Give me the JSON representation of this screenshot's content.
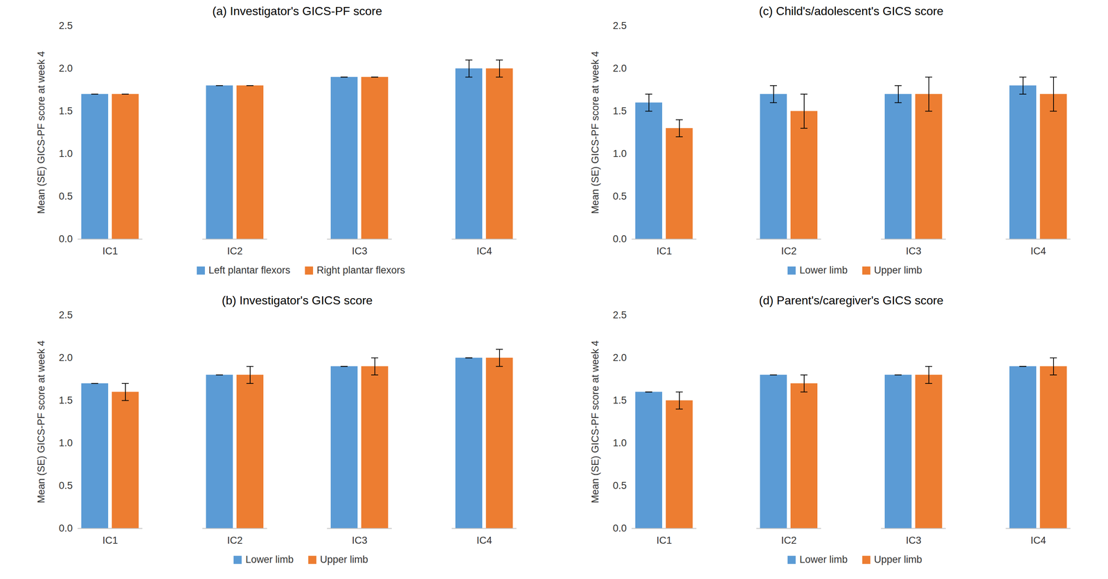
{
  "chart_data": [
    {
      "type": "bar",
      "title": "(a) Investigator's GICS-PF score",
      "ylabel": "Mean (SE) GICS-PF score at week 4",
      "categories": [
        "IC1",
        "IC2",
        "IC3",
        "IC4"
      ],
      "series": [
        {
          "name": "Left plantar flexors",
          "color": "#5b9bd5",
          "values": [
            1.7,
            1.8,
            1.9,
            2.0
          ],
          "errors": [
            0,
            0,
            0,
            0.1
          ]
        },
        {
          "name": "Right plantar flexors",
          "color": "#ed7d31",
          "values": [
            1.7,
            1.8,
            1.9,
            2.0
          ],
          "errors": [
            0,
            0,
            0,
            0.1
          ]
        }
      ],
      "ylim": [
        0,
        2.5
      ],
      "yticks": [
        0,
        0.5,
        1,
        1.5,
        2,
        2.5
      ],
      "legend": "bottom"
    },
    {
      "type": "bar",
      "title": "(b) Investigator's GICS score",
      "ylabel": "Mean (SE) GICS-PF score at week 4",
      "categories": [
        "IC1",
        "IC2",
        "IC3",
        "IC4"
      ],
      "series": [
        {
          "name": "Lower limb",
          "color": "#5b9bd5",
          "values": [
            1.7,
            1.8,
            1.9,
            2.0
          ],
          "errors": [
            0,
            0,
            0,
            0
          ]
        },
        {
          "name": "Upper limb",
          "color": "#ed7d31",
          "values": [
            1.6,
            1.8,
            1.9,
            2.0
          ],
          "errors": [
            0.1,
            0.1,
            0.1,
            0.1
          ]
        }
      ],
      "ylim": [
        0,
        2.5
      ],
      "yticks": [
        0,
        0.5,
        1,
        1.5,
        2,
        2.5
      ],
      "legend": "bottom"
    },
    {
      "type": "bar",
      "title": "(c) Child's/adolescent's GICS score",
      "ylabel": "Mean (SE) GICS-PF score at week 4",
      "categories": [
        "IC1",
        "IC2",
        "IC3",
        "IC4"
      ],
      "series": [
        {
          "name": "Lower limb",
          "color": "#5b9bd5",
          "values": [
            1.6,
            1.7,
            1.7,
            1.8
          ],
          "errors": [
            0.1,
            0.1,
            0.1,
            0.1
          ]
        },
        {
          "name": "Upper limb",
          "color": "#ed7d31",
          "values": [
            1.3,
            1.5,
            1.7,
            1.7
          ],
          "errors": [
            0.1,
            0.2,
            0.2,
            0.2
          ]
        }
      ],
      "ylim": [
        0,
        2.5
      ],
      "yticks": [
        0,
        0.5,
        1,
        1.5,
        2,
        2.5
      ],
      "legend": "bottom"
    },
    {
      "type": "bar",
      "title": "(d) Parent's/caregiver's GICS score",
      "ylabel": "Mean (SE) GICS-PF score at week 4",
      "categories": [
        "IC1",
        "IC2",
        "IC3",
        "IC4"
      ],
      "series": [
        {
          "name": "Lower limb",
          "color": "#5b9bd5",
          "values": [
            1.6,
            1.8,
            1.8,
            1.9
          ],
          "errors": [
            0,
            0,
            0,
            0
          ]
        },
        {
          "name": "Upper limb",
          "color": "#ed7d31",
          "values": [
            1.5,
            1.7,
            1.8,
            1.9
          ],
          "errors": [
            0.1,
            0.1,
            0.1,
            0.1
          ]
        }
      ],
      "ylim": [
        0,
        2.5
      ],
      "yticks": [
        0,
        0.5,
        1,
        1.5,
        2,
        2.5
      ],
      "legend": "bottom"
    }
  ]
}
